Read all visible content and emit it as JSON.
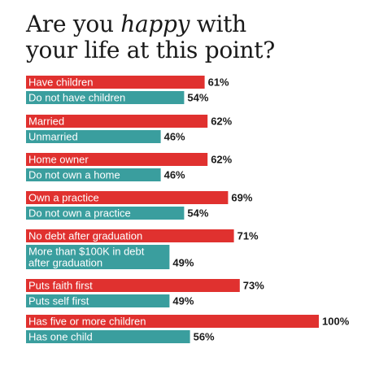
{
  "title": {
    "part1": "Are you ",
    "emphasis": "happy",
    "part2": " with",
    "line2": "your life at this point?"
  },
  "colors": {
    "series_a": "#e0312f",
    "series_b": "#3a9e9e"
  },
  "chart_data": {
    "type": "bar",
    "orientation": "horizontal",
    "xlim": [
      0,
      100
    ],
    "unit": "%",
    "groups": [
      {
        "bars": [
          {
            "label": "Have children",
            "value": 61
          },
          {
            "label": "Do not have children",
            "value": 54
          }
        ]
      },
      {
        "bars": [
          {
            "label": "Married",
            "value": 62
          },
          {
            "label": "Unmarried",
            "value": 46
          }
        ]
      },
      {
        "bars": [
          {
            "label": "Home owner",
            "value": 62
          },
          {
            "label": "Do not own a home",
            "value": 46
          }
        ]
      },
      {
        "bars": [
          {
            "label": "Own a practice",
            "value": 69
          },
          {
            "label": "Do not own a practice",
            "value": 54
          }
        ]
      },
      {
        "bars": [
          {
            "label": "No debt after graduation",
            "value": 71
          },
          {
            "label": "More than $100K in debt after graduation",
            "value": 49
          }
        ]
      },
      {
        "bars": [
          {
            "label": "Puts faith first",
            "value": 73
          },
          {
            "label": "Puts self first",
            "value": 49
          }
        ]
      },
      {
        "bars": [
          {
            "label": "Has five or more children",
            "value": 100
          },
          {
            "label": "Has one child",
            "value": 56
          }
        ]
      }
    ]
  }
}
